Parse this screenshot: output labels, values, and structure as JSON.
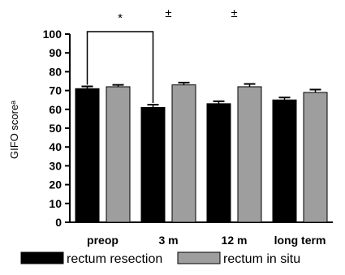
{
  "chart_data": {
    "type": "bar",
    "categories": [
      "preop",
      "3 m",
      "12 m",
      "long term"
    ],
    "series": [
      {
        "name": "rectum resection",
        "values": [
          71,
          61,
          63,
          65
        ],
        "errors": [
          1.2,
          1.5,
          1.3,
          1.3
        ],
        "color": "#000000"
      },
      {
        "name": "rectum in situ",
        "values": [
          72,
          73,
          72,
          69
        ],
        "errors": [
          1.0,
          1.2,
          1.5,
          1.5
        ],
        "color": "#9e9e9e"
      }
    ],
    "ylabel": "GIFO scoreᵃ",
    "ylim": [
      0,
      100
    ],
    "yticks": [
      "0",
      "10",
      "20",
      "30",
      "40",
      "50",
      "60",
      "70",
      "80",
      "90",
      "100"
    ],
    "grid": false,
    "legend_position": "bottom",
    "annotations": [
      {
        "text": "*",
        "category_index": 0,
        "bracket_to": 1
      },
      {
        "text": "±",
        "category_index": 1
      },
      {
        "text": "±",
        "category_index": 2
      }
    ]
  }
}
